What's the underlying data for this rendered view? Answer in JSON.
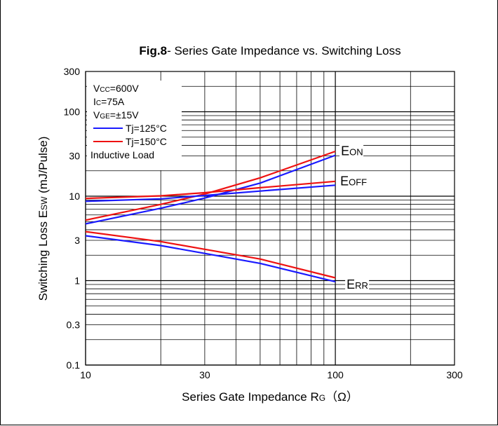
{
  "chart_data": {
    "type": "line",
    "title_bold": "Fig.8",
    "title_rest": "- Series Gate Impedance vs. Switching Loss",
    "xlabel": {
      "main": "Series Gate Impedance R",
      "sub": "G",
      "unit": "（Ω）"
    },
    "ylabel": {
      "main": "Switching Loss E",
      "sub": "SW",
      "unit": " (mJ/Pulse)"
    },
    "x_scale": "log",
    "y_scale": "log",
    "xlim": [
      10,
      300
    ],
    "ylim": [
      0.1,
      300
    ],
    "x_ticks": [
      10,
      30,
      100,
      300
    ],
    "x_tick_labels": [
      "10",
      "30",
      "100",
      "300"
    ],
    "y_ticks": [
      0.1,
      0.3,
      1,
      3,
      10,
      30,
      100,
      300
    ],
    "y_tick_labels": [
      "0.1",
      "0.3",
      "1",
      "3",
      "10",
      "30",
      "100",
      "300"
    ],
    "grid": true,
    "conditions": [
      {
        "main": "V",
        "sub": "CC",
        "rest": "=600V"
      },
      {
        "main": "I",
        "sub": "C",
        "rest": "=75A"
      },
      {
        "main": "V",
        "sub": "GE",
        "rest": "=±15V"
      }
    ],
    "legend": [
      {
        "name": "Tj=125°C",
        "color": "#1a1aff"
      },
      {
        "name": "Tj=150°C",
        "color": "#ee1111"
      }
    ],
    "legend_note": "Inductive Load",
    "legend_position": "top-left",
    "series": [
      {
        "curve": "EON",
        "temp": "Tj=125°C",
        "color": "#1a1aff",
        "x": [
          10,
          20,
          30,
          50,
          100
        ],
        "y": [
          4.7,
          7.2,
          9.5,
          14.3,
          30.5
        ]
      },
      {
        "curve": "EON",
        "temp": "Tj=150°C",
        "color": "#ee1111",
        "x": [
          10,
          20,
          30,
          50,
          100
        ],
        "y": [
          5.2,
          8.0,
          10.6,
          16.5,
          34.0
        ]
      },
      {
        "curve": "EOFF",
        "temp": "Tj=125°C",
        "color": "#1a1aff",
        "x": [
          10,
          20,
          30,
          50,
          100
        ],
        "y": [
          8.7,
          9.3,
          10.2,
          11.5,
          13.5
        ]
      },
      {
        "curve": "EOFF",
        "temp": "Tj=150°C",
        "color": "#ee1111",
        "x": [
          10,
          20,
          30,
          50,
          100
        ],
        "y": [
          9.4,
          10.1,
          11.0,
          12.6,
          15.0
        ]
      },
      {
        "curve": "ERR",
        "temp": "Tj=125°C",
        "color": "#1a1aff",
        "x": [
          10,
          20,
          30,
          50,
          100
        ],
        "y": [
          3.4,
          2.6,
          2.1,
          1.6,
          0.97
        ]
      },
      {
        "curve": "ERR",
        "temp": "Tj=150°C",
        "color": "#ee1111",
        "x": [
          10,
          20,
          30,
          50,
          100
        ],
        "y": [
          3.8,
          2.9,
          2.35,
          1.8,
          1.08
        ]
      }
    ],
    "curve_labels": [
      {
        "main": "E",
        "sub": "ON"
      },
      {
        "main": "E",
        "sub": "OFF"
      },
      {
        "main": "E",
        "sub": "RR"
      }
    ]
  }
}
